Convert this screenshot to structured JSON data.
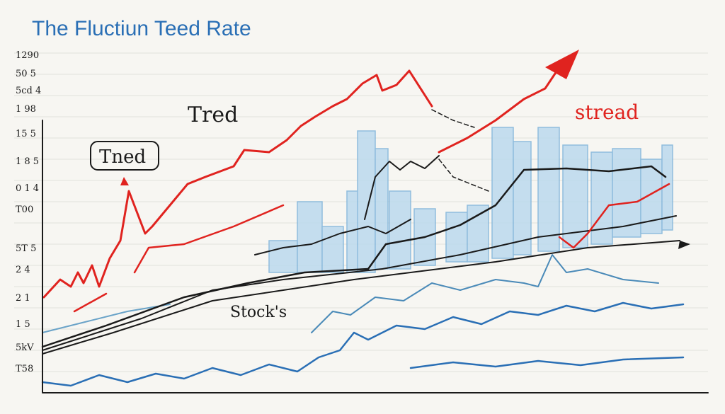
{
  "header": {
    "title": "The Fluctiun Teed Rate"
  },
  "annotations": {
    "upper_left": "Tred",
    "boxed": "Tned",
    "right": "stread",
    "center": "Stock's"
  },
  "axis_labels": [
    "1290",
    "50 5",
    "5cd 4",
    "1 98",
    "15 5",
    "1 8 5",
    "0 1 4",
    "T00",
    "5T 5",
    "2 4",
    "2 1",
    "1 5",
    "5kV",
    "T58"
  ]
}
